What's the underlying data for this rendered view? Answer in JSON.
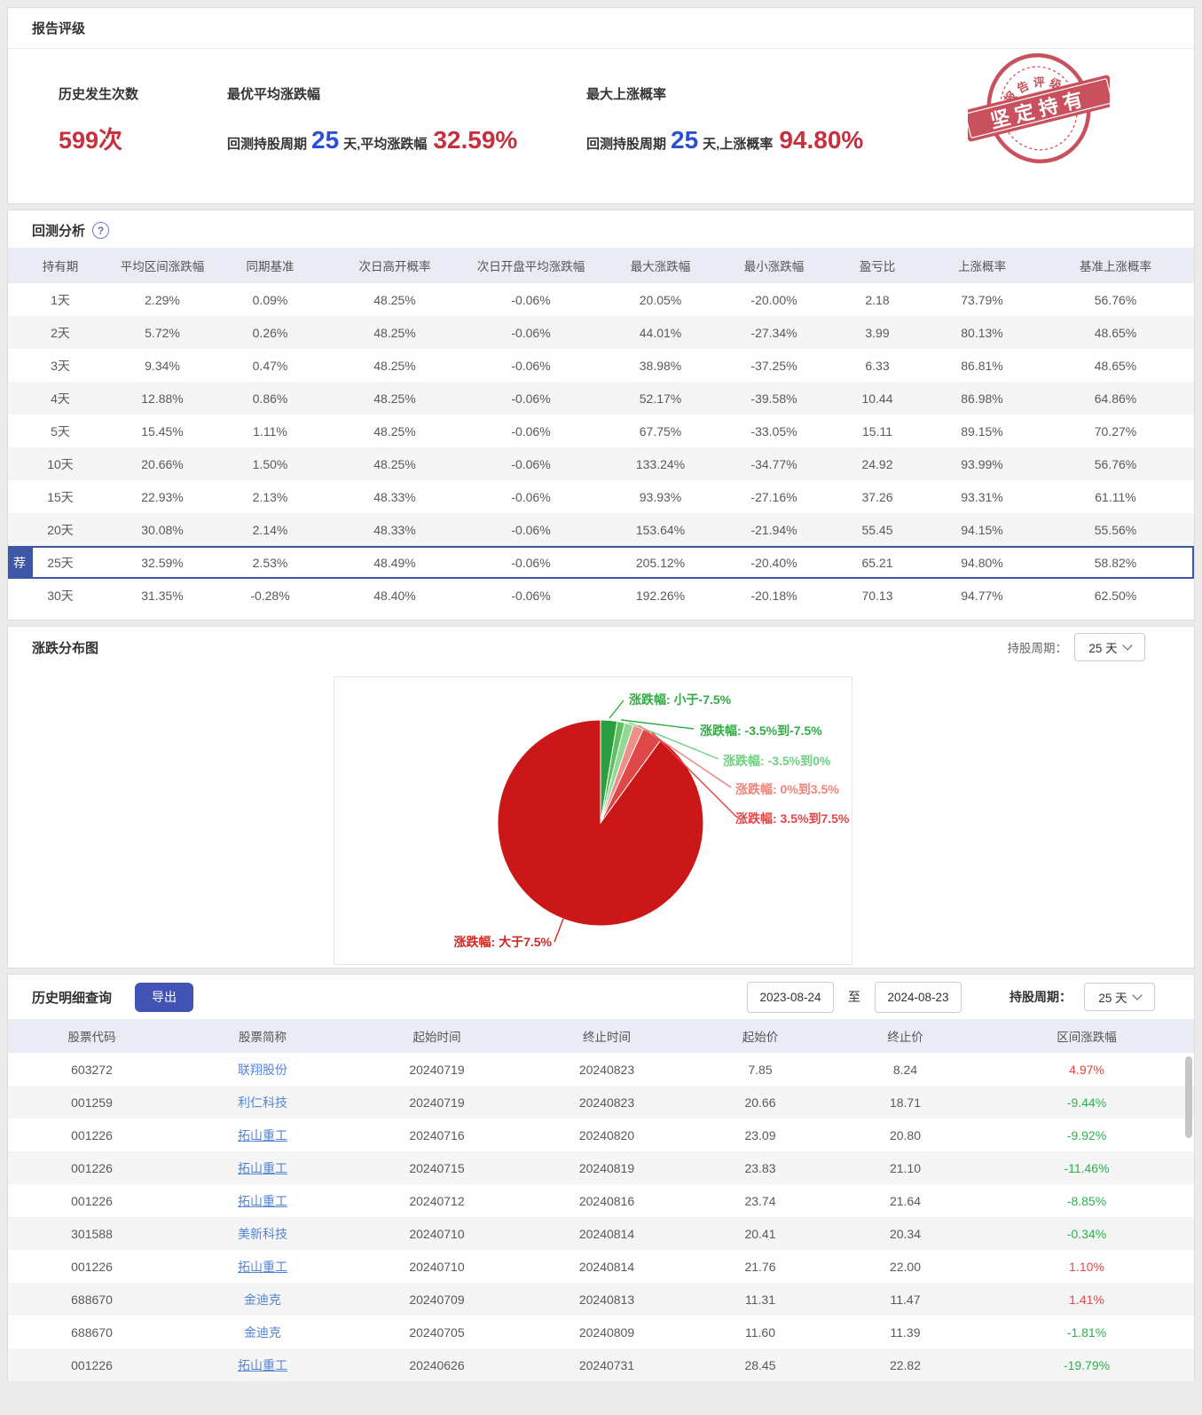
{
  "rating": {
    "title": "报告评级",
    "occurrences": {
      "label": "历史发生次数",
      "value": "599次"
    },
    "best_avg": {
      "label": "最优平均涨跌幅",
      "prefix": "回测持股周期",
      "days": "25",
      "mid": "天,平均涨跌幅",
      "value": "32.59%"
    },
    "max_prob": {
      "label": "最大上涨概率",
      "prefix": "回测持股周期",
      "days": "25",
      "mid": "天,上涨概率",
      "value": "94.80%"
    },
    "stamp": {
      "arc_text": "报告评级",
      "banner_text": "坚定持有"
    }
  },
  "backtest": {
    "title": "回测分析",
    "help_icon": "?",
    "recommend_badge": "荐",
    "columns": [
      "持有期",
      "平均区间涨跌幅",
      "同期基准",
      "次日高开概率",
      "次日开盘平均涨跌幅",
      "最大涨跌幅",
      "最小涨跌幅",
      "盈亏比",
      "上涨概率",
      "基准上涨概率"
    ],
    "rows": [
      {
        "cells": [
          "1天",
          "2.29%",
          "0.09%",
          "48.25%",
          "-0.06%",
          "20.05%",
          "-20.00%",
          "2.18",
          "73.79%",
          "56.76%"
        ],
        "shaded": false,
        "recommended": false
      },
      {
        "cells": [
          "2天",
          "5.72%",
          "0.26%",
          "48.25%",
          "-0.06%",
          "44.01%",
          "-27.34%",
          "3.99",
          "80.13%",
          "48.65%"
        ],
        "shaded": true,
        "recommended": false
      },
      {
        "cells": [
          "3天",
          "9.34%",
          "0.47%",
          "48.25%",
          "-0.06%",
          "38.98%",
          "-37.25%",
          "6.33",
          "86.81%",
          "48.65%"
        ],
        "shaded": false,
        "recommended": false
      },
      {
        "cells": [
          "4天",
          "12.88%",
          "0.86%",
          "48.25%",
          "-0.06%",
          "52.17%",
          "-39.58%",
          "10.44",
          "86.98%",
          "64.86%"
        ],
        "shaded": true,
        "recommended": false
      },
      {
        "cells": [
          "5天",
          "15.45%",
          "1.11%",
          "48.25%",
          "-0.06%",
          "67.75%",
          "-33.05%",
          "15.11",
          "89.15%",
          "70.27%"
        ],
        "shaded": false,
        "recommended": false
      },
      {
        "cells": [
          "10天",
          "20.66%",
          "1.50%",
          "48.25%",
          "-0.06%",
          "133.24%",
          "-34.77%",
          "24.92",
          "93.99%",
          "56.76%"
        ],
        "shaded": true,
        "recommended": false
      },
      {
        "cells": [
          "15天",
          "22.93%",
          "2.13%",
          "48.33%",
          "-0.06%",
          "93.93%",
          "-27.16%",
          "37.26",
          "93.31%",
          "61.11%"
        ],
        "shaded": false,
        "recommended": false
      },
      {
        "cells": [
          "20天",
          "30.08%",
          "2.14%",
          "48.33%",
          "-0.06%",
          "153.64%",
          "-21.94%",
          "55.45",
          "94.15%",
          "55.56%"
        ],
        "shaded": true,
        "recommended": false
      },
      {
        "cells": [
          "25天",
          "32.59%",
          "2.53%",
          "48.49%",
          "-0.06%",
          "205.12%",
          "-20.40%",
          "65.21",
          "94.80%",
          "58.82%"
        ],
        "shaded": false,
        "recommended": true
      },
      {
        "cells": [
          "30天",
          "31.35%",
          "-0.28%",
          "48.40%",
          "-0.06%",
          "192.26%",
          "-20.18%",
          "70.13",
          "94.77%",
          "62.50%"
        ],
        "shaded": false,
        "recommended": false
      }
    ]
  },
  "distribution": {
    "title": "涨跌分布图",
    "period_label": "持股周期：",
    "period_value": "25 天"
  },
  "chart_data": {
    "type": "pie",
    "title": "涨跌分布图",
    "legend_position": "outside-labels-with-leader-lines",
    "slices": [
      {
        "label": "涨跌幅: 小于-7.5%",
        "value": 2.6,
        "color": "#2b9e3f",
        "label_color": "#33ab44"
      },
      {
        "label": "涨跌幅: -3.5%到-7.5%",
        "value": 1.2,
        "color": "#5fbf61",
        "label_color": "#33ab44"
      },
      {
        "label": "涨跌幅: -3.5%到0%",
        "value": 1.4,
        "color": "#93d894",
        "label_color": "#6fd080"
      },
      {
        "label": "涨跌幅: 0%到3.5%",
        "value": 1.6,
        "color": "#ee9089",
        "label_color": "#f0837b"
      },
      {
        "label": "涨跌幅: 3.5%到7.5%",
        "value": 3.2,
        "color": "#e04848",
        "label_color": "#e64545"
      },
      {
        "label": "涨跌幅: 大于7.5%",
        "value": 90.0,
        "color": "#cb1717",
        "label_color": "#cf2621"
      }
    ]
  },
  "history": {
    "title": "历史明细查询",
    "export_label": "导出",
    "date_from": "2023-08-24",
    "date_separator": "至",
    "date_to": "2024-08-23",
    "period_label": "持股周期：",
    "period_value": "25 天",
    "columns": [
      "股票代码",
      "股票简称",
      "起始时间",
      "终止时间",
      "起始价",
      "终止价",
      "区间涨跌幅"
    ],
    "rows": [
      {
        "code": "603272",
        "name": "联翔股份",
        "underline": false,
        "start": "20240719",
        "end": "20240823",
        "open": "7.85",
        "close": "8.24",
        "change": "4.97%"
      },
      {
        "code": "001259",
        "name": "利仁科技",
        "underline": false,
        "start": "20240719",
        "end": "20240823",
        "open": "20.66",
        "close": "18.71",
        "change": "-9.44%"
      },
      {
        "code": "001226",
        "name": "拓山重工",
        "underline": true,
        "start": "20240716",
        "end": "20240820",
        "open": "23.09",
        "close": "20.80",
        "change": "-9.92%"
      },
      {
        "code": "001226",
        "name": "拓山重工",
        "underline": true,
        "start": "20240715",
        "end": "20240819",
        "open": "23.83",
        "close": "21.10",
        "change": "-11.46%"
      },
      {
        "code": "001226",
        "name": "拓山重工",
        "underline": true,
        "start": "20240712",
        "end": "20240816",
        "open": "23.74",
        "close": "21.64",
        "change": "-8.85%"
      },
      {
        "code": "301588",
        "name": "美新科技",
        "underline": false,
        "start": "20240710",
        "end": "20240814",
        "open": "20.41",
        "close": "20.34",
        "change": "-0.34%"
      },
      {
        "code": "001226",
        "name": "拓山重工",
        "underline": true,
        "start": "20240710",
        "end": "20240814",
        "open": "21.76",
        "close": "22.00",
        "change": "1.10%"
      },
      {
        "code": "688670",
        "name": "金迪克",
        "underline": false,
        "start": "20240709",
        "end": "20240813",
        "open": "11.31",
        "close": "11.47",
        "change": "1.41%"
      },
      {
        "code": "688670",
        "name": "金迪克",
        "underline": false,
        "start": "20240705",
        "end": "20240809",
        "open": "11.60",
        "close": "11.39",
        "change": "-1.81%"
      },
      {
        "code": "001226",
        "name": "拓山重工",
        "underline": true,
        "start": "20240626",
        "end": "20240731",
        "open": "28.45",
        "close": "22.82",
        "change": "-19.79%"
      }
    ]
  }
}
